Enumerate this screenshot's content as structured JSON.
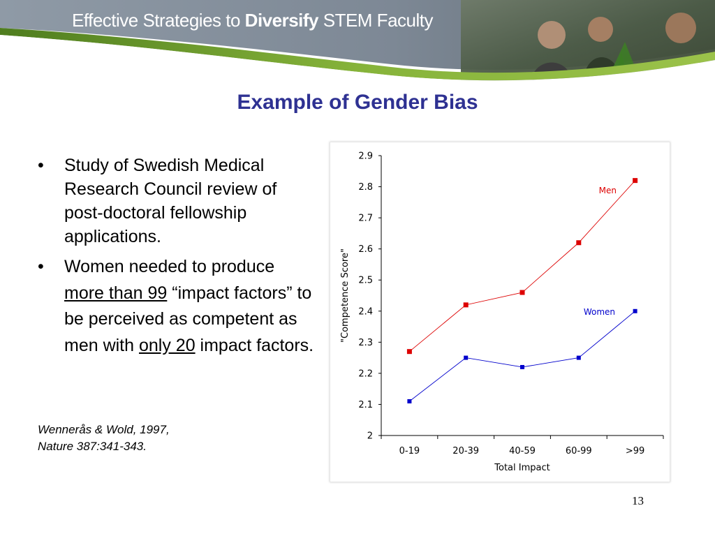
{
  "header": {
    "title_part1": "Effective Strategies to ",
    "title_bold": "Diversify",
    "title_part2": " STEM Faculty"
  },
  "slide": {
    "title": "Example of Gender Bias",
    "page_number": "13"
  },
  "bullets": {
    "symbol": "•",
    "item1": "Study of Swedish Medical Research Council review of post-doctoral fellowship applications.",
    "item2_a": "Women needed to produce ",
    "item2_u1": "more than 99",
    "item2_b": " “impact factors” to be perceived as competent as men with ",
    "item2_u2": "only 20",
    "item2_c": " impact factors."
  },
  "citation": {
    "line1": "Wennerås & Wold, 1997,",
    "line2": "Nature 387:341-343."
  },
  "colors": {
    "title": "#2e3192",
    "men": "#dd0000",
    "women": "#0000cc",
    "banner_green": "#6b9a2c"
  },
  "chart_data": {
    "type": "line",
    "categories": [
      "0-19",
      "20-39",
      "40-59",
      "60-99",
      ">99"
    ],
    "series": [
      {
        "name": "Men",
        "values": [
          2.27,
          2.42,
          2.46,
          2.62,
          2.82
        ],
        "color": "#dd0000"
      },
      {
        "name": "Women",
        "values": [
          2.11,
          2.25,
          2.22,
          2.25,
          2.4
        ],
        "color": "#0000cc"
      }
    ],
    "xlabel": "Total Impact",
    "ylabel": "\"Competence Score\"",
    "ylim": [
      2,
      2.9
    ],
    "yticks": [
      "2",
      "2.1",
      "2.2",
      "2.3",
      "2.4",
      "2.5",
      "2.6",
      "2.7",
      "2.8",
      "2.9"
    ],
    "grid": false,
    "legend": "inline labels"
  }
}
